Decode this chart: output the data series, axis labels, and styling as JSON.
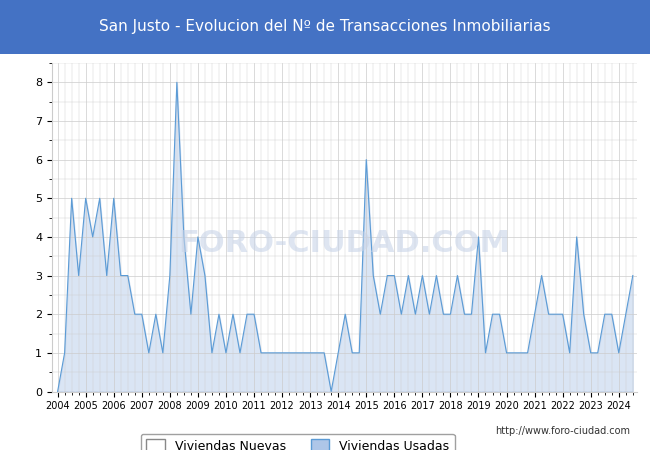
{
  "title": "San Justo - Evolucion del Nº de Transacciones Inmobiliarias",
  "title_bg_color": "#4472c4",
  "title_text_color": "#ffffff",
  "background_color": "#ffffff",
  "plot_bg_color": "#ffffff",
  "grid_color": "#cccccc",
  "legend_labels": [
    "Viviendas Nuevas",
    "Viviendas Usadas"
  ],
  "fill_nuevas": "#ffffff",
  "fill_usadas": "#aec6e8",
  "line_nuevas": "#888888",
  "line_usadas": "#5b9bd5",
  "watermark": "http://www.foro-ciudad.com",
  "years": [
    2004,
    2004.25,
    2004.5,
    2004.75,
    2005,
    2005.25,
    2005.5,
    2005.75,
    2006,
    2006.25,
    2006.5,
    2006.75,
    2007,
    2007.25,
    2007.5,
    2007.75,
    2008,
    2008.25,
    2008.5,
    2008.75,
    2009,
    2009.25,
    2009.5,
    2009.75,
    2010,
    2010.25,
    2010.5,
    2010.75,
    2011,
    2011.25,
    2011.5,
    2011.75,
    2012,
    2012.25,
    2012.5,
    2012.75,
    2013,
    2013.25,
    2013.5,
    2013.75,
    2014,
    2014.25,
    2014.5,
    2014.75,
    2015,
    2015.25,
    2015.5,
    2015.75,
    2016,
    2016.25,
    2016.5,
    2016.75,
    2017,
    2017.25,
    2017.5,
    2017.75,
    2018,
    2018.25,
    2018.5,
    2018.75,
    2019,
    2019.25,
    2019.5,
    2019.75,
    2020,
    2020.25,
    2020.5,
    2020.75,
    2021,
    2021.25,
    2021.5,
    2021.75,
    2022,
    2022.25,
    2022.5,
    2022.75,
    2023,
    2023.25,
    2023.5,
    2023.75,
    2024,
    2024.25,
    2024.5
  ],
  "nuevas": [
    0,
    0,
    0,
    0,
    0,
    0,
    0,
    0,
    0,
    0,
    0,
    0,
    0,
    0,
    0,
    0,
    0,
    0,
    0,
    0,
    0,
    0,
    0,
    0,
    0,
    0,
    0,
    0,
    0,
    0,
    0,
    0,
    0,
    0,
    0,
    0,
    0,
    0,
    0,
    0,
    0,
    0,
    0,
    0,
    0,
    0,
    0,
    0,
    0,
    0,
    0,
    0,
    0,
    0,
    0,
    0,
    0,
    0,
    0,
    0,
    0,
    0,
    0,
    0,
    0,
    0,
    0,
    0,
    0,
    0,
    0,
    0,
    0,
    0,
    0,
    0,
    0,
    0,
    0,
    0,
    0,
    0,
    0,
    0,
    0,
    0,
    0
  ],
  "usadas": [
    0,
    1,
    5,
    3,
    5,
    4,
    5,
    3,
    5,
    3,
    3,
    2,
    2,
    1,
    2,
    1,
    3,
    8,
    4,
    2,
    4,
    3,
    1,
    2,
    1,
    2,
    1,
    2,
    2,
    1,
    1,
    1,
    1,
    1,
    1,
    1,
    1,
    1,
    1,
    0,
    1,
    2,
    1,
    1,
    6,
    3,
    2,
    3,
    3,
    2,
    3,
    2,
    3,
    2,
    3,
    2,
    2,
    3,
    2,
    2,
    4,
    1,
    2,
    2,
    1,
    1,
    1,
    1,
    2,
    3,
    2,
    2,
    2,
    1,
    4,
    2,
    1,
    1,
    2,
    2,
    1,
    2,
    3
  ]
}
